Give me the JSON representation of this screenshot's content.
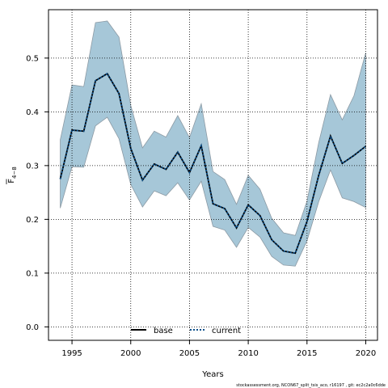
{
  "chart_data": {
    "type": "area",
    "xlabel": "Years",
    "ylabel_main": "F",
    "ylabel_sub": "4−8",
    "xlim": [
      1993.0,
      2021.0
    ],
    "ylim": [
      -0.025,
      0.59
    ],
    "xticks": [
      1995,
      2000,
      2005,
      2010,
      2015,
      2020
    ],
    "yticks": [
      0.0,
      0.1,
      0.2,
      0.3,
      0.4,
      0.5
    ],
    "ytick_labels": [
      "0.0",
      "0.1",
      "0.2",
      "0.3",
      "0.4",
      "0.5"
    ],
    "grid": true,
    "legend_position": "bottom-center",
    "x": [
      1994,
      1995,
      1996,
      1997,
      1998,
      1999,
      2000,
      2001,
      2002,
      2003,
      2004,
      2005,
      2006,
      2007,
      2008,
      2009,
      2010,
      2011,
      2012,
      2013,
      2014,
      2015,
      2016,
      2017,
      2018,
      2019,
      2020
    ],
    "band": {
      "upper": [
        0.348,
        0.45,
        0.447,
        0.566,
        0.569,
        0.539,
        0.412,
        0.333,
        0.364,
        0.353,
        0.393,
        0.352,
        0.415,
        0.289,
        0.274,
        0.228,
        0.282,
        0.256,
        0.202,
        0.175,
        0.17,
        0.234,
        0.343,
        0.432,
        0.385,
        0.43,
        0.51
      ],
      "lower": [
        0.221,
        0.298,
        0.297,
        0.374,
        0.39,
        0.35,
        0.265,
        0.223,
        0.253,
        0.244,
        0.268,
        0.236,
        0.271,
        0.187,
        0.18,
        0.148,
        0.185,
        0.167,
        0.131,
        0.115,
        0.113,
        0.16,
        0.233,
        0.292,
        0.24,
        0.233,
        0.222
      ],
      "color": "#a6c7d8",
      "edge_color": "#8c9aa4"
    },
    "series": [
      {
        "name": "base",
        "values": [
          0.275,
          0.366,
          0.364,
          0.458,
          0.471,
          0.434,
          0.332,
          0.273,
          0.303,
          0.293,
          0.325,
          0.287,
          0.337,
          0.229,
          0.22,
          0.184,
          0.227,
          0.207,
          0.162,
          0.141,
          0.137,
          0.196,
          0.282,
          0.355,
          0.304,
          0.319,
          0.336
        ],
        "color": "#000000",
        "style": "solid"
      },
      {
        "name": "current",
        "values": [
          0.275,
          0.366,
          0.364,
          0.458,
          0.471,
          0.434,
          0.332,
          0.273,
          0.303,
          0.293,
          0.325,
          0.287,
          0.337,
          0.229,
          0.22,
          0.184,
          0.227,
          0.207,
          0.162,
          0.141,
          0.137,
          0.196,
          0.282,
          0.355,
          0.304,
          0.319,
          0.336
        ],
        "color": "#0b4f8a",
        "style": "dotted"
      }
    ],
    "footer": "stockassessment.org, NCON67_split_tsis_aco, r16197 , git: ec2c2a0c6dde"
  }
}
